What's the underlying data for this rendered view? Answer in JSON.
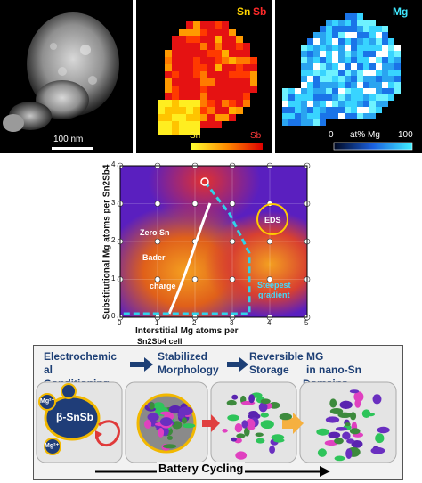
{
  "top_panels": {
    "haadf": {
      "scalebar_label": "100 nm"
    },
    "snsb_map": {
      "label_sn": "Sn",
      "label_sb": "Sb",
      "cbar_left": "Sn",
      "cbar_right": "Sb"
    },
    "mg_map": {
      "label": "Mg",
      "cbar_min": "0",
      "cbar_unit": "at% Mg",
      "cbar_max": "100"
    }
  },
  "phase_map": {
    "ylabel": "Substitutional Mg atoms per Sn2Sb4",
    "xlabel_line1": "Interstitial Mg atoms per",
    "xlabel_line2": "Sn2Sb4 cell",
    "x_ticks": [
      "0",
      "1",
      "2",
      "3",
      "4",
      "5"
    ],
    "y_ticks": [
      "0",
      "1",
      "2",
      "3",
      "4"
    ],
    "ann_zero_sn": "Zero Sn",
    "ann_bader": "Bader",
    "ann_charge": "charge",
    "ann_eds": "EDS",
    "ann_steepest_1": "Steepest",
    "ann_steepest_2": "gradient",
    "colors": {
      "purple": "#5a1fbf",
      "orange": "#f07a1a",
      "red": "#d9262c",
      "dashed": "#2fd3ea"
    }
  },
  "schematic": {
    "step1_line1": "Electrochemic",
    "step1_line2": "al",
    "step1_line3": "Conditioning",
    "step2_line1": "Stabilized",
    "step2_line2": "Morphology",
    "step3_line1": "Reversible MG",
    "step3_line2": "Storage",
    "step3_line3": "in nano-Sn",
    "step3_line4": "Domains",
    "particle_label": "β-SnSb",
    "mg_ion": "Mg²⁺",
    "mg_ion_small": "Mg²⁺",
    "battery_label": "Battery Cycling"
  }
}
